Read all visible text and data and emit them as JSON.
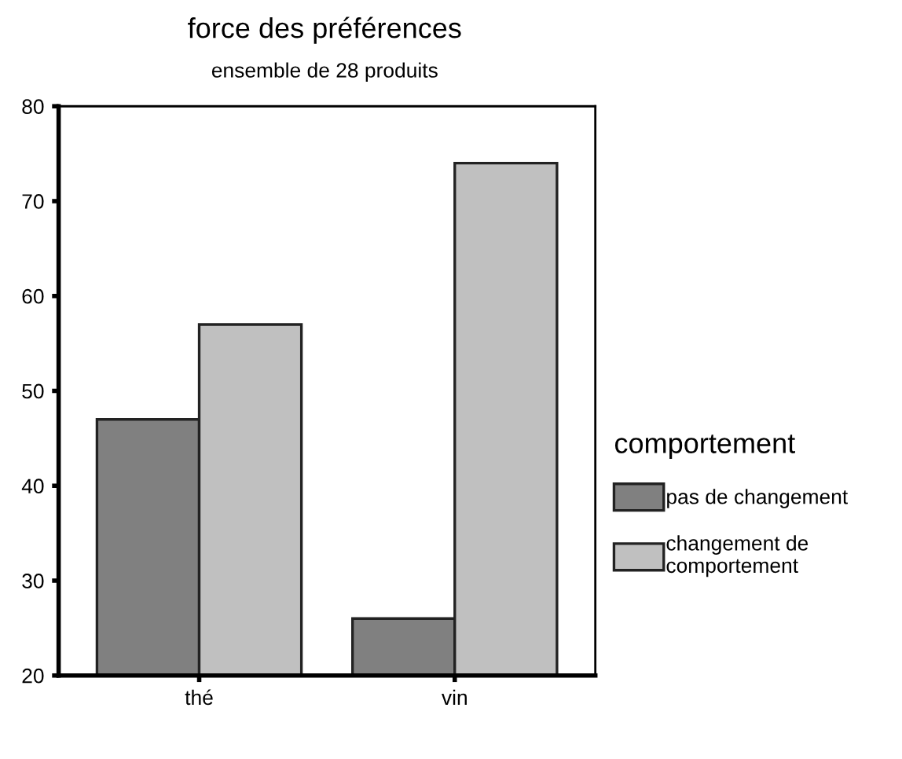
{
  "chart_data": {
    "type": "bar",
    "title": "force des préférences",
    "subtitle": "ensemble de 28 produits",
    "categories": [
      "thé",
      "vin"
    ],
    "series": [
      {
        "name": "pas de changement",
        "color": "#808080",
        "values": [
          47,
          26
        ]
      },
      {
        "name": "changement de\ncomportement",
        "color": "#c0c0c0",
        "values": [
          57,
          74
        ]
      }
    ],
    "legend_title": "comportement",
    "legend": "right",
    "ylim": [
      20,
      80
    ],
    "yticks": [
      20,
      30,
      40,
      50,
      60,
      70,
      80
    ],
    "grid": false
  }
}
